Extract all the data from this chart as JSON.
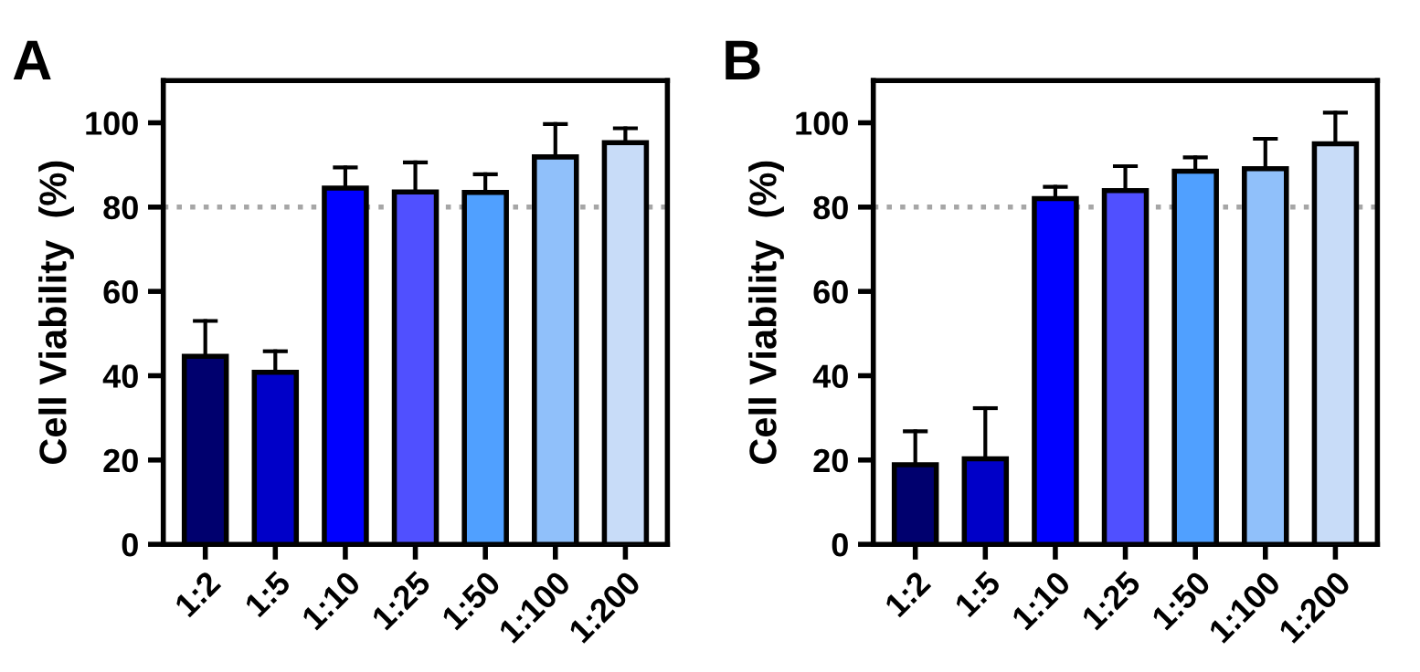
{
  "chart_data": [
    {
      "type": "bar",
      "title": "A",
      "ylabel": "Cell Viability  (%)",
      "categories": [
        "1:2",
        "1:5",
        "1:10",
        "1:25",
        "1:50",
        "1:100",
        "1:200"
      ],
      "values": [
        44.6,
        40.8,
        84.5,
        83.6,
        83.5,
        91.9,
        95.3
      ],
      "errors": [
        [
          44.6,
          53
        ],
        [
          40.8,
          45.8
        ],
        [
          84.5,
          89.4
        ],
        [
          83.6,
          90.6
        ],
        [
          83.5,
          87.8
        ],
        [
          91.9,
          99.7
        ],
        [
          95.3,
          98.7
        ]
      ],
      "colors": [
        "#00006e",
        "#0000c8",
        "#0000ff",
        "#5050ff",
        "#50a0ff",
        "#90c0fa",
        "#c8dcf8"
      ],
      "ylim": [
        0,
        110
      ],
      "yticks": [
        0,
        20,
        40,
        60,
        80,
        100
      ],
      "grid": false,
      "legend": false,
      "ref_lines": [
        {
          "axis": "y",
          "value": 80,
          "color": "#a6a6a6",
          "line_style": "dotted"
        }
      ]
    },
    {
      "type": "bar",
      "title": "B",
      "ylabel": "Cell Viability  (%)",
      "categories": [
        "1:2",
        "1:5",
        "1:10",
        "1:25",
        "1:50",
        "1:100",
        "1:200"
      ],
      "values": [
        18.9,
        20.3,
        82,
        83.9,
        88.5,
        89.1,
        95
      ],
      "errors": [
        [
          18.9,
          26.8
        ],
        [
          20.3,
          32.3
        ],
        [
          82,
          84.8
        ],
        [
          83.9,
          89.7
        ],
        [
          88.5,
          91.8
        ],
        [
          89.1,
          96.2
        ],
        [
          95,
          102.4
        ]
      ],
      "colors": [
        "#00006e",
        "#0000c8",
        "#0000ff",
        "#5050ff",
        "#50a0ff",
        "#90c0fa",
        "#c8dcf8"
      ],
      "ylim": [
        0,
        110
      ],
      "yticks": [
        0,
        20,
        40,
        60,
        80,
        100
      ],
      "grid": false,
      "legend": false,
      "ref_lines": [
        {
          "axis": "y",
          "value": 80,
          "color": "#a6a6a6",
          "line_style": "dotted"
        }
      ]
    }
  ]
}
